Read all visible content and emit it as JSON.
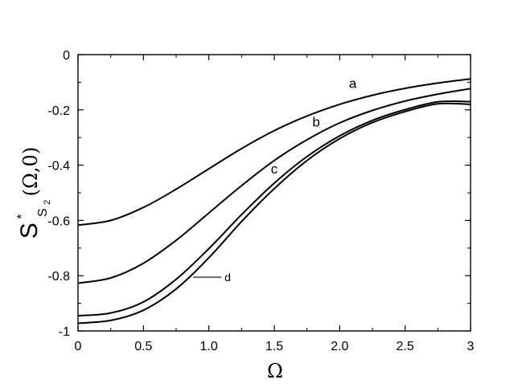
{
  "chart_data": {
    "type": "line",
    "title": "",
    "xlabel": "Ω",
    "ylabel": {
      "main": "S",
      "superscript": "*",
      "subscript": "S",
      "sub_subscript": "2",
      "args": "(Ω,0)"
    },
    "xlim": [
      0,
      3
    ],
    "ylim": [
      -1,
      0
    ],
    "x_ticks": [
      0,
      0.5,
      1.0,
      1.5,
      2.0,
      2.5,
      3
    ],
    "x_tick_labels": [
      "0",
      "0.5",
      "1.0",
      "1.5",
      "2.0",
      "2.5",
      "3"
    ],
    "y_ticks": [
      0,
      -0.2,
      -0.4,
      -0.6,
      -0.8,
      -1
    ],
    "y_tick_labels": [
      "0",
      "-0.2",
      "-0.4",
      "-0.6",
      "-0.8",
      "-1"
    ],
    "grid": false,
    "legend": "none",
    "line_color": "#000000",
    "series": [
      {
        "label": "a",
        "x": [
          0,
          0.25,
          0.5,
          0.75,
          1.0,
          1.25,
          1.5,
          1.75,
          2.0,
          2.25,
          2.5,
          2.75,
          3.0
        ],
        "y": [
          -0.617,
          -0.6,
          -0.553,
          -0.487,
          -0.413,
          -0.34,
          -0.275,
          -0.222,
          -0.18,
          -0.147,
          -0.122,
          -0.103,
          -0.088
        ]
      },
      {
        "label": "b",
        "x": [
          0,
          0.25,
          0.5,
          0.75,
          1.0,
          1.25,
          1.5,
          1.75,
          2.0,
          2.25,
          2.5,
          2.75,
          3.0
        ],
        "y": [
          -0.827,
          -0.808,
          -0.755,
          -0.672,
          -0.573,
          -0.474,
          -0.383,
          -0.308,
          -0.247,
          -0.202,
          -0.168,
          -0.143,
          -0.123
        ]
      },
      {
        "label": "c",
        "x": [
          0,
          0.25,
          0.5,
          0.75,
          1.0,
          1.25,
          1.5,
          1.75,
          2.0,
          2.25,
          2.5,
          2.75,
          3.0
        ],
        "y": [
          -0.945,
          -0.935,
          -0.895,
          -0.813,
          -0.702,
          -0.579,
          -0.465,
          -0.369,
          -0.294,
          -0.238,
          -0.199,
          -0.171,
          -0.17
        ]
      },
      {
        "label": "d",
        "x": [
          0,
          0.25,
          0.5,
          0.75,
          1.0,
          1.25,
          1.5,
          1.75,
          2.0,
          2.25,
          2.5,
          2.75,
          3.0
        ],
        "y": [
          -0.972,
          -0.962,
          -0.925,
          -0.848,
          -0.735,
          -0.604,
          -0.485,
          -0.383,
          -0.304,
          -0.246,
          -0.206,
          -0.178,
          -0.18
        ]
      }
    ],
    "annotations": [
      {
        "text": "a",
        "series": "a",
        "at_x": 2.1,
        "at_y": -0.12
      },
      {
        "text": "b",
        "series": "b",
        "at_x": 1.82,
        "at_y": -0.26
      },
      {
        "text": "c",
        "series": "c",
        "at_x": 1.5,
        "at_y": -0.43
      },
      {
        "text": "d",
        "series": "d",
        "at_x": 1.12,
        "at_y": -0.82,
        "leader_to_x": 0.88
      }
    ]
  }
}
